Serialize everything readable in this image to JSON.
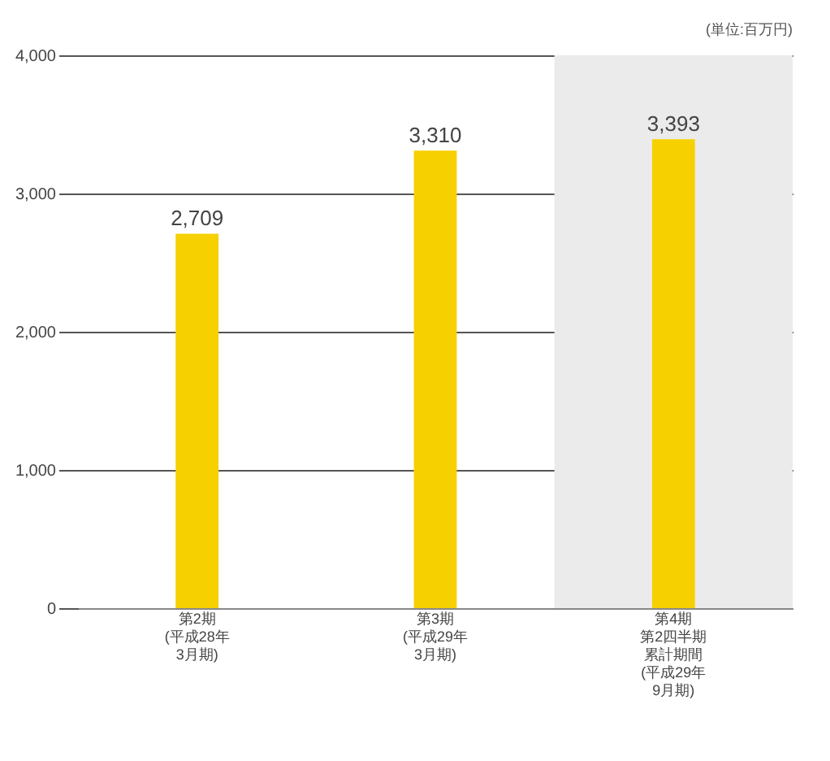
{
  "chart_data": {
    "type": "bar",
    "categories": [
      "第2期(平成28年3月期)",
      "第3期(平成29年3月期)",
      "第4期第2四半期累計期間(平成29年9月期)"
    ],
    "values": [
      2709,
      3310,
      3393
    ],
    "color": "#f7d000",
    "value_labels": [
      "2,709",
      "3,310",
      "3,393"
    ],
    "ylim": [
      0,
      4000
    ],
    "yticks": [
      {
        "value": 0,
        "label": "0"
      },
      {
        "value": 1000,
        "label": "1,000"
      },
      {
        "value": 2000,
        "label": "2,000"
      },
      {
        "value": 3000,
        "label": "3,000"
      },
      {
        "value": 4000,
        "label": "4,000"
      }
    ],
    "grid": "y",
    "bands": [
      {
        "axis": "x",
        "from": "第4期第2四半期累計期間(平成29年9月期)",
        "to": "第4期第2四半期累計期間(平成29年9月期)",
        "color": "#ebebeb"
      }
    ],
    "annotations": [
      "(単位:百万円)"
    ]
  }
}
